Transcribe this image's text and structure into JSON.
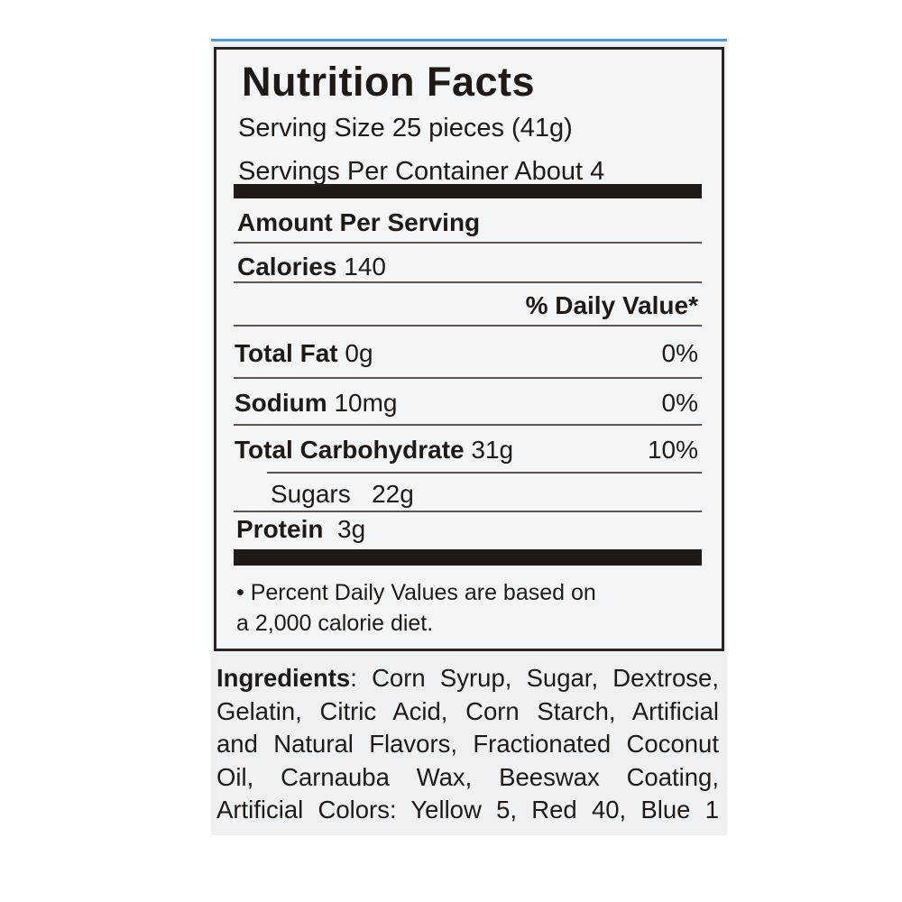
{
  "label": {
    "title": "Nutrition Facts",
    "serving_size": "Serving Size 25 pieces (41g)",
    "servings_per_container": "Servings Per Container About 4",
    "amount_per_serving": "Amount Per Serving",
    "calories_label": "Calories",
    "calories_value": "140",
    "daily_value_header": "% Daily Value*",
    "nutrients": [
      {
        "name": "Total Fat",
        "amount": "0g",
        "dv": "0%"
      },
      {
        "name": "Sodium",
        "amount": "10mg",
        "dv": "0%"
      },
      {
        "name": "Total Carbohydrate",
        "amount": "31g",
        "dv": "10%"
      },
      {
        "name": "Sugars",
        "amount": "22g",
        "dv": ""
      },
      {
        "name": "Protein",
        "amount": "3g",
        "dv": ""
      }
    ],
    "footnote_line1": "• Percent Daily Values are based on",
    "footnote_line2": "a 2,000 calorie diet."
  },
  "ingredients": {
    "heading": "Ingredients",
    "lines": [
      ": Corn Syrup, Sugar, Dextrose,",
      "Gelatin, Citric Acid, Corn Starch, Artificial",
      "and Natural Flavors, Fractionated Coconut",
      "Oil, Carnauba Wax, Beeswax Coating,",
      "Artificial Colors: Yellow 5, Red 40, Blue 1"
    ]
  },
  "colors": {
    "ink": "#1e1a18",
    "package_background": "#eef0f2",
    "package_edge": "#5b9bd5"
  }
}
